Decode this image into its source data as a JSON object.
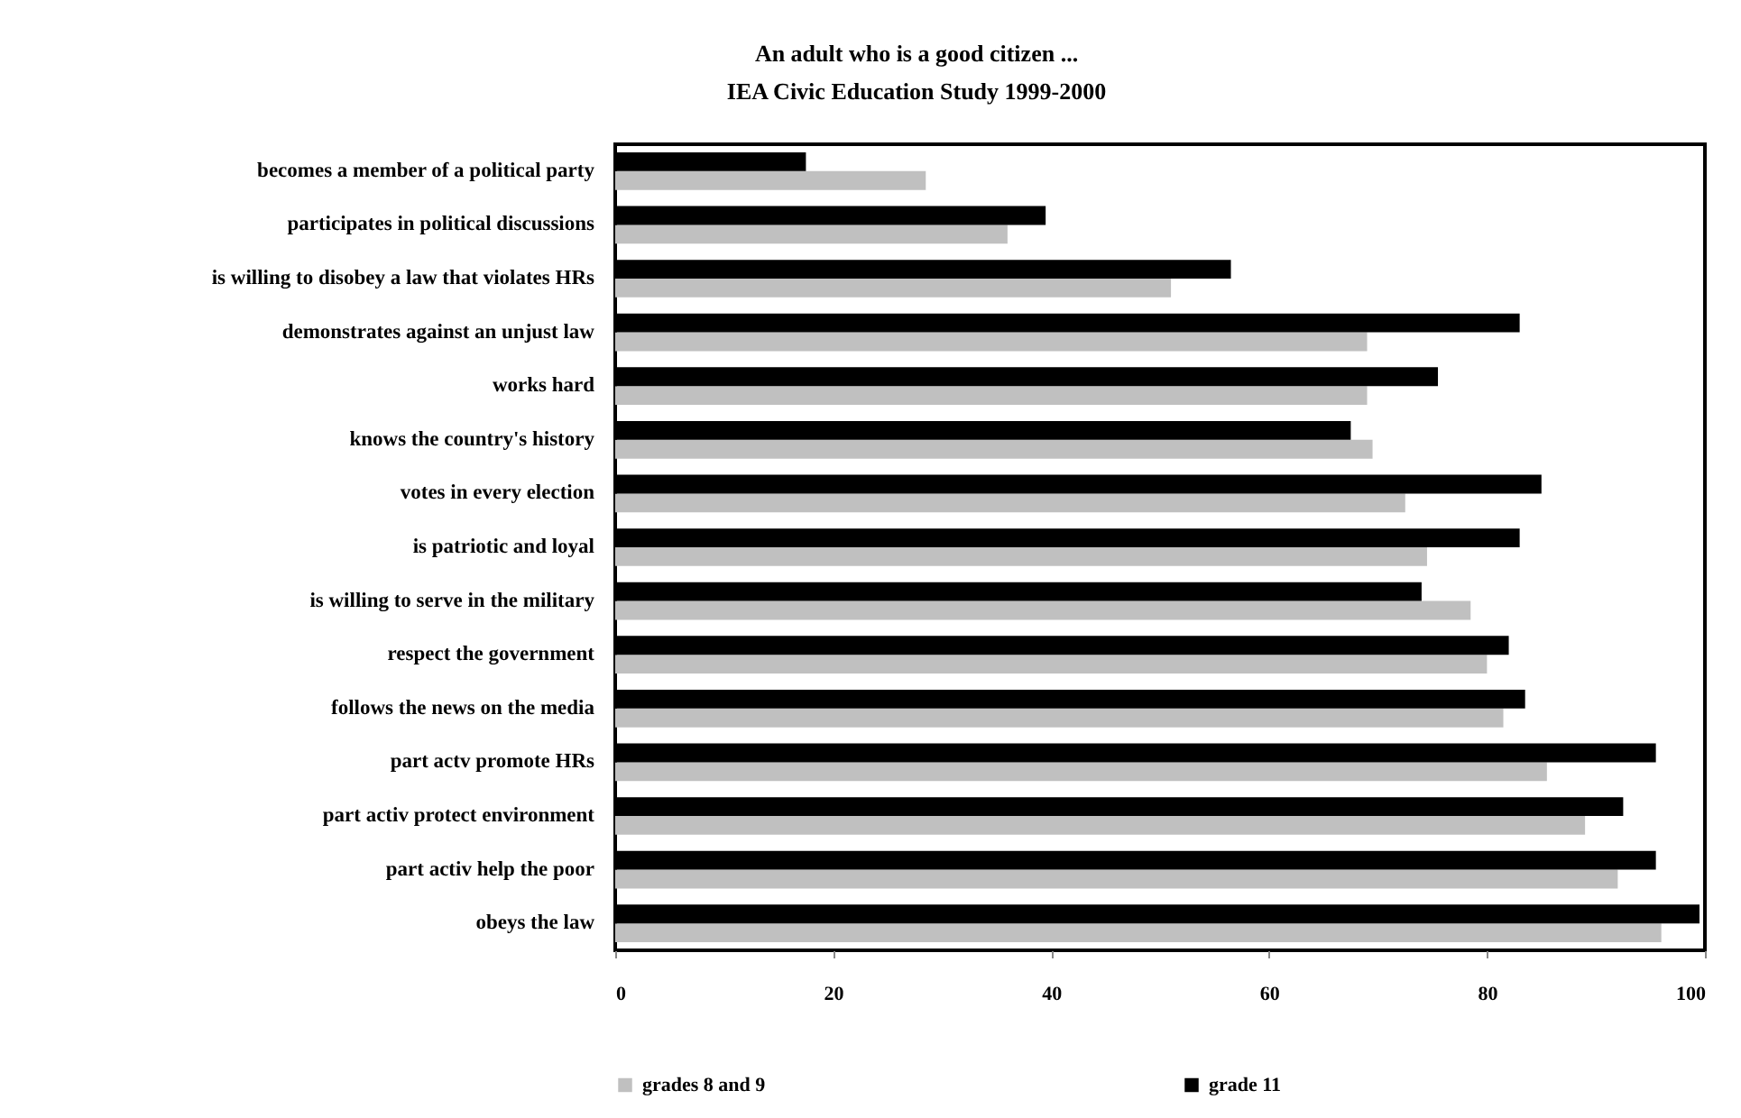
{
  "chart_data": {
    "type": "bar",
    "orientation": "horizontal",
    "title": "An adult who is a good citizen ...",
    "subtitle": "IEA Civic Education Study 1999-2000",
    "categories": [
      "becomes a member of a political party",
      "participates in political discussions",
      "is willing to disobey a law that violates HRs",
      "demonstrates against an unjust law",
      "works hard",
      "knows the country's history",
      "votes in every election",
      "is patriotic and loyal",
      "is willing to serve in the military",
      "respect the government",
      "follows the news on the media",
      "part actv promote HRs",
      "part activ protect environment",
      "part activ help the poor",
      "obeys the law"
    ],
    "series": [
      {
        "name": "grades 8 and 9",
        "color": "#c0c0c0",
        "values": [
          28.5,
          36,
          51,
          69,
          69,
          69.5,
          72.5,
          74.5,
          78.5,
          80,
          81.5,
          85.5,
          89,
          92,
          96
        ]
      },
      {
        "name": "grade 11",
        "color": "#000000",
        "values": [
          17.5,
          39.5,
          56.5,
          83,
          75.5,
          67.5,
          85,
          83,
          74,
          82,
          83.5,
          95.5,
          92.5,
          95.5,
          99.5
        ]
      }
    ],
    "xlim": [
      0,
      100
    ],
    "xticks": [
      0,
      20,
      40,
      60,
      80,
      100
    ],
    "grid": false,
    "legend": "bottom"
  }
}
